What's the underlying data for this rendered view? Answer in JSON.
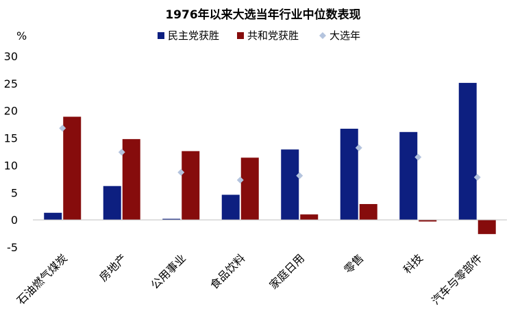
{
  "chart_data": {
    "type": "bar",
    "title": "1976年以来大选当年行业中位数表现",
    "ylabel": "%",
    "ylim": [
      -5,
      30
    ],
    "yticks": [
      -5,
      0,
      5,
      10,
      15,
      20,
      25,
      30
    ],
    "grid": false,
    "legend_position": "top",
    "categories": [
      "石油燃气煤炭",
      "房地产",
      "公用事业",
      "食品饮料",
      "家庭日用",
      "零售",
      "科技",
      "汽车与零部件"
    ],
    "series": [
      {
        "name": "民主党获胜",
        "kind": "bar",
        "color": "#0D1F80",
        "values": [
          1.3,
          6.2,
          0.2,
          4.6,
          12.9,
          16.7,
          16.1,
          25.1
        ]
      },
      {
        "name": "共和党获胜",
        "kind": "bar",
        "color": "#860C0C",
        "values": [
          18.9,
          14.8,
          12.6,
          11.4,
          1.0,
          2.9,
          -0.3,
          -2.6
        ]
      },
      {
        "name": "大选年",
        "kind": "marker",
        "color": "#B4C4DE",
        "values": [
          16.8,
          12.4,
          8.7,
          7.3,
          8.1,
          13.2,
          11.5,
          7.8
        ]
      }
    ]
  }
}
